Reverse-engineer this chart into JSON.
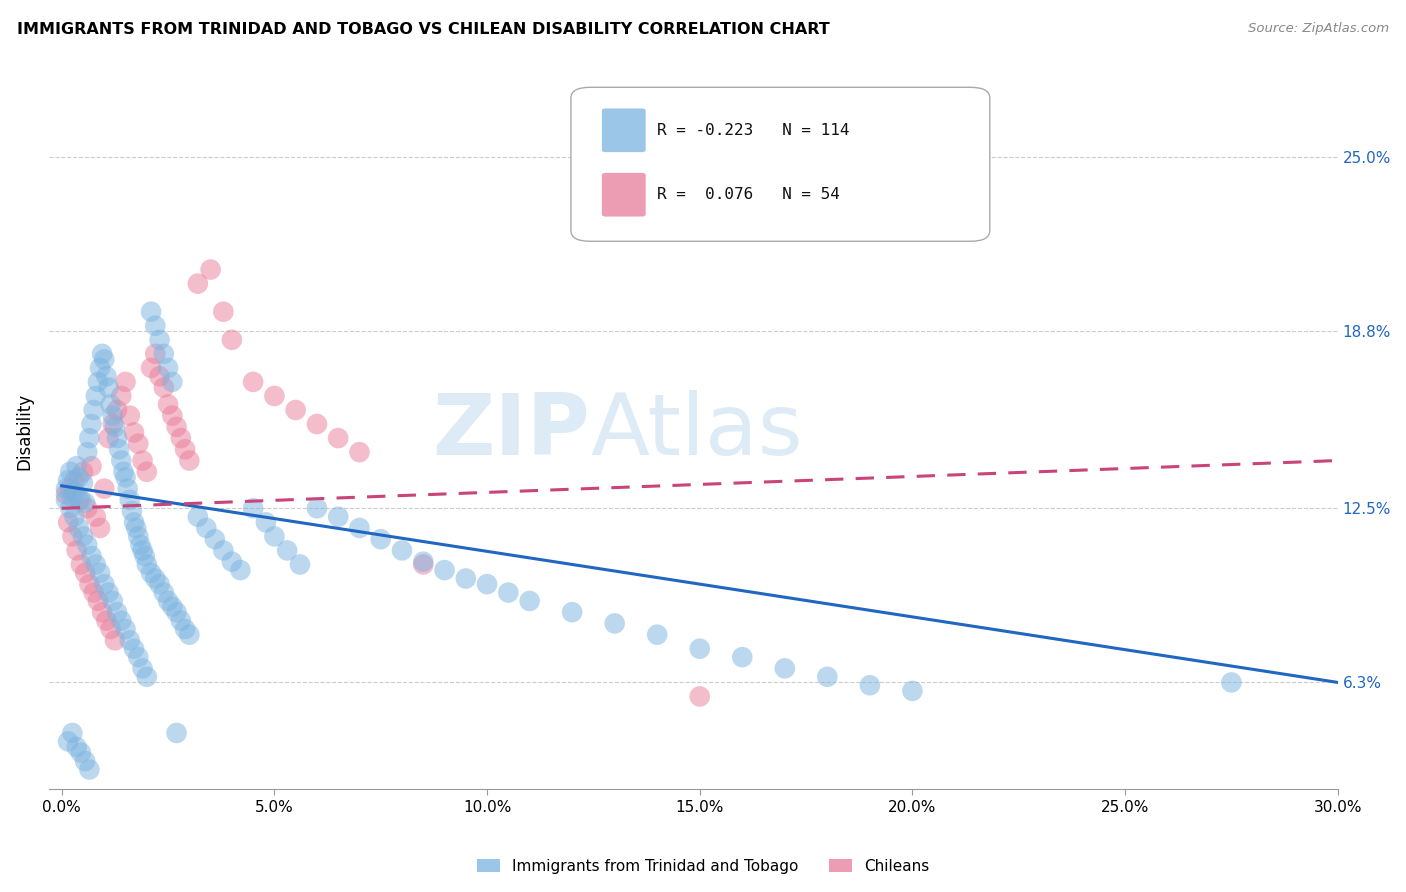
{
  "title": "IMMIGRANTS FROM TRINIDAD AND TOBAGO VS CHILEAN DISABILITY CORRELATION CHART",
  "source": "Source: ZipAtlas.com",
  "xlabel_ticks": [
    "0.0%",
    "5.0%",
    "10.0%",
    "15.0%",
    "20.0%",
    "25.0%",
    "30.0%"
  ],
  "xlabel_vals": [
    0.0,
    5.0,
    10.0,
    15.0,
    20.0,
    25.0,
    30.0
  ],
  "ylabel_ticks": [
    "6.3%",
    "12.5%",
    "18.8%",
    "25.0%"
  ],
  "ylabel_vals": [
    6.3,
    12.5,
    18.8,
    25.0
  ],
  "ylabel_label": "Disability",
  "xlim": [
    -0.3,
    30.0
  ],
  "ylim": [
    2.5,
    28.0
  ],
  "blue_R": -0.223,
  "blue_N": 114,
  "pink_R": 0.076,
  "pink_N": 54,
  "blue_color": "#7ab3e0",
  "pink_color": "#e87d9a",
  "blue_line_color": "#2166c0",
  "pink_line_color": "#c94478",
  "legend_blue_label": "Immigrants from Trinidad and Tobago",
  "legend_pink_label": "Chileans",
  "watermark_zip": "ZIP",
  "watermark_atlas": "Atlas",
  "blue_line_x0": 0.0,
  "blue_line_y0": 13.3,
  "blue_line_x1": 30.0,
  "blue_line_y1": 6.3,
  "pink_line_x0": 0.0,
  "pink_line_y0": 12.5,
  "pink_line_x1": 30.0,
  "pink_line_y1": 14.2,
  "blue_scatter_x": [
    0.1,
    0.15,
    0.2,
    0.25,
    0.3,
    0.35,
    0.4,
    0.45,
    0.5,
    0.55,
    0.6,
    0.65,
    0.7,
    0.75,
    0.8,
    0.85,
    0.9,
    0.95,
    1.0,
    1.05,
    1.1,
    1.15,
    1.2,
    1.25,
    1.3,
    1.35,
    1.4,
    1.45,
    1.5,
    1.55,
    1.6,
    1.65,
    1.7,
    1.75,
    1.8,
    1.85,
    1.9,
    1.95,
    2.0,
    2.1,
    2.2,
    2.3,
    2.4,
    2.5,
    2.6,
    2.7,
    2.8,
    2.9,
    3.0,
    3.2,
    3.4,
    3.6,
    3.8,
    4.0,
    4.2,
    4.5,
    4.8,
    5.0,
    5.3,
    5.6,
    6.0,
    6.5,
    7.0,
    7.5,
    8.0,
    8.5,
    9.0,
    9.5,
    10.0,
    10.5,
    11.0,
    12.0,
    13.0,
    14.0,
    15.0,
    16.0,
    17.0,
    18.0,
    19.0,
    20.0,
    0.1,
    0.2,
    0.3,
    0.4,
    0.5,
    0.6,
    0.7,
    0.8,
    0.9,
    1.0,
    1.1,
    1.2,
    1.3,
    1.4,
    1.5,
    1.6,
    1.7,
    1.8,
    1.9,
    2.0,
    2.1,
    2.2,
    2.3,
    2.4,
    2.5,
    2.6,
    2.7,
    0.15,
    0.25,
    0.35,
    0.45,
    0.55,
    0.65,
    27.5
  ],
  "blue_scatter_y": [
    13.2,
    13.5,
    13.8,
    12.9,
    13.1,
    14.0,
    13.6,
    12.8,
    13.4,
    12.7,
    14.5,
    15.0,
    15.5,
    16.0,
    16.5,
    17.0,
    17.5,
    18.0,
    17.8,
    17.2,
    16.8,
    16.2,
    15.8,
    15.4,
    15.0,
    14.6,
    14.2,
    13.8,
    13.6,
    13.2,
    12.8,
    12.4,
    12.0,
    11.8,
    11.5,
    11.2,
    11.0,
    10.8,
    10.5,
    10.2,
    10.0,
    9.8,
    9.5,
    9.2,
    9.0,
    8.8,
    8.5,
    8.2,
    8.0,
    12.2,
    11.8,
    11.4,
    11.0,
    10.6,
    10.3,
    12.5,
    12.0,
    11.5,
    11.0,
    10.5,
    12.5,
    12.2,
    11.8,
    11.4,
    11.0,
    10.6,
    10.3,
    10.0,
    9.8,
    9.5,
    9.2,
    8.8,
    8.4,
    8.0,
    7.5,
    7.2,
    6.8,
    6.5,
    6.2,
    6.0,
    12.8,
    12.5,
    12.2,
    11.8,
    11.5,
    11.2,
    10.8,
    10.5,
    10.2,
    9.8,
    9.5,
    9.2,
    8.8,
    8.5,
    8.2,
    7.8,
    7.5,
    7.2,
    6.8,
    6.5,
    19.5,
    19.0,
    18.5,
    18.0,
    17.5,
    17.0,
    4.5,
    4.2,
    4.5,
    4.0,
    3.8,
    3.5,
    3.2,
    6.3
  ],
  "pink_scatter_x": [
    0.1,
    0.2,
    0.3,
    0.4,
    0.5,
    0.6,
    0.7,
    0.8,
    0.9,
    1.0,
    1.1,
    1.2,
    1.3,
    1.4,
    1.5,
    1.6,
    1.7,
    1.8,
    1.9,
    2.0,
    2.1,
    2.2,
    2.3,
    2.4,
    2.5,
    2.6,
    2.7,
    2.8,
    2.9,
    3.0,
    3.2,
    3.5,
    3.8,
    4.0,
    4.5,
    5.0,
    5.5,
    6.0,
    6.5,
    7.0,
    0.15,
    0.25,
    0.35,
    0.45,
    0.55,
    0.65,
    0.75,
    0.85,
    0.95,
    1.05,
    1.15,
    1.25,
    8.5,
    15.0
  ],
  "pink_scatter_y": [
    13.0,
    13.2,
    13.5,
    12.8,
    13.8,
    12.5,
    14.0,
    12.2,
    11.8,
    13.2,
    15.0,
    15.5,
    16.0,
    16.5,
    17.0,
    15.8,
    15.2,
    14.8,
    14.2,
    13.8,
    17.5,
    18.0,
    17.2,
    16.8,
    16.2,
    15.8,
    15.4,
    15.0,
    14.6,
    14.2,
    20.5,
    21.0,
    19.5,
    18.5,
    17.0,
    16.5,
    16.0,
    15.5,
    15.0,
    14.5,
    12.0,
    11.5,
    11.0,
    10.5,
    10.2,
    9.8,
    9.5,
    9.2,
    8.8,
    8.5,
    8.2,
    7.8,
    10.5,
    5.8
  ]
}
